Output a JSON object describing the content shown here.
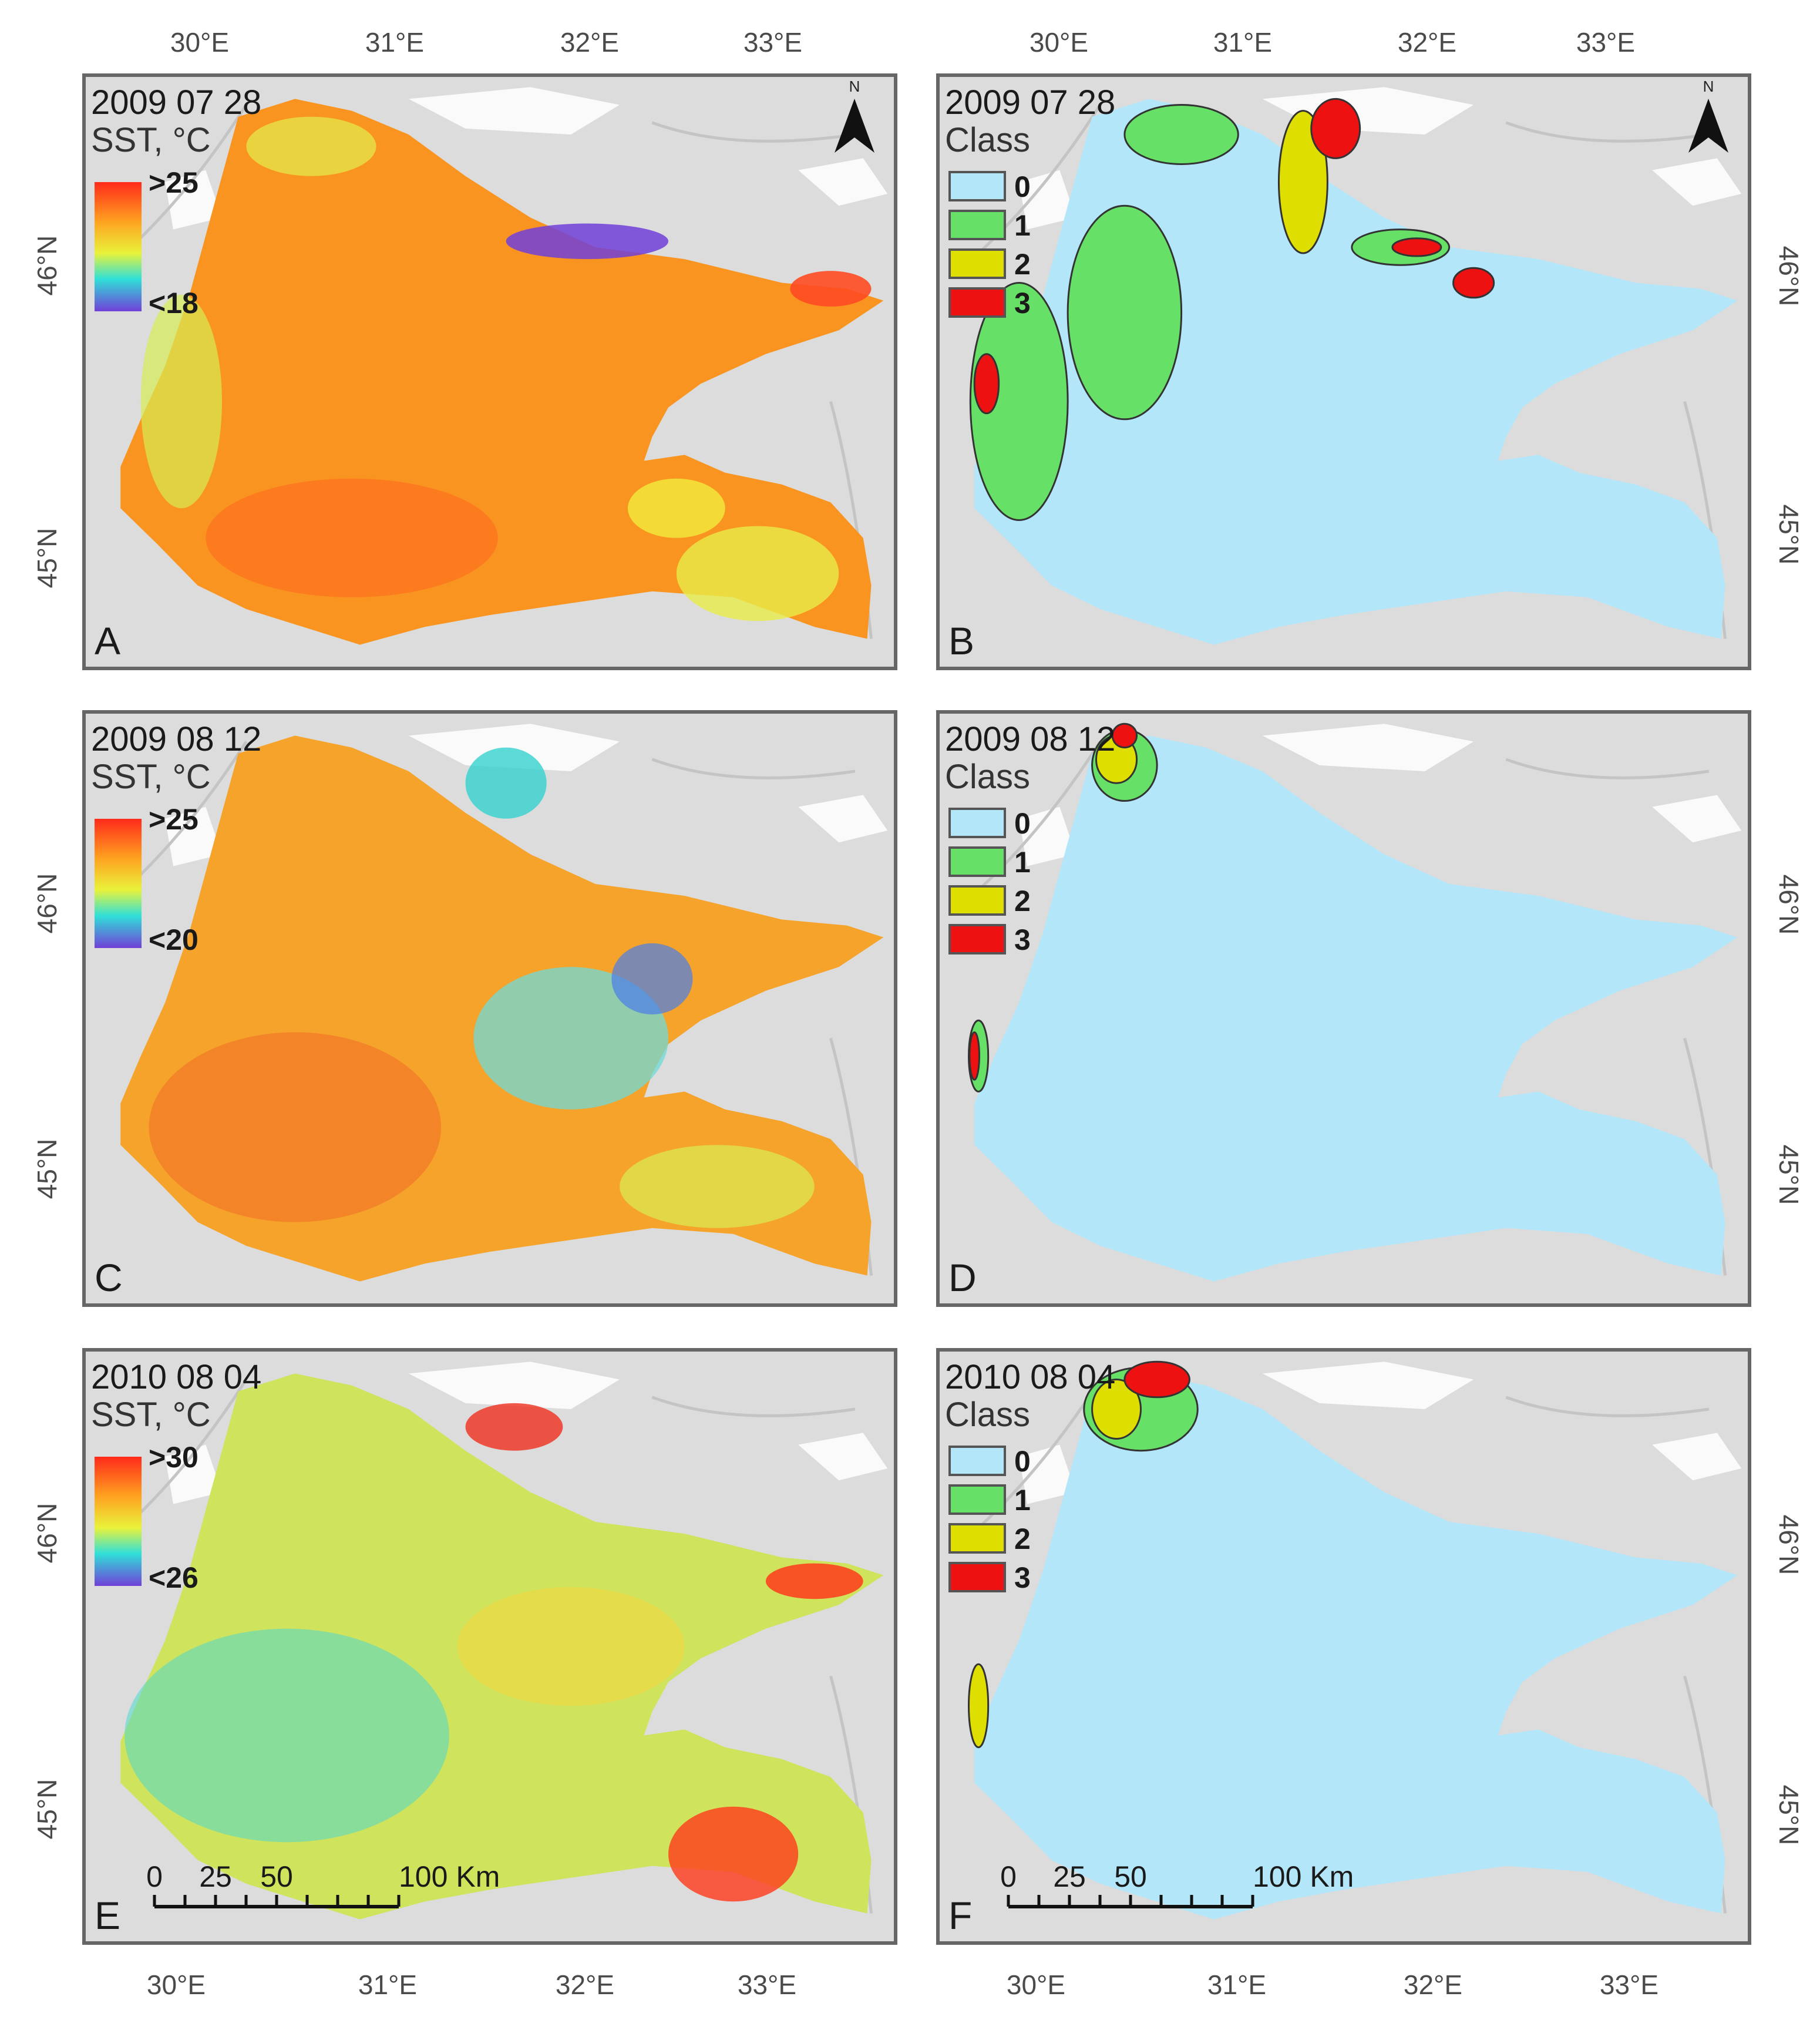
{
  "axes": {
    "lon_labels": [
      "30°E",
      "31°E",
      "32°E",
      "33°E"
    ],
    "lat_labels": [
      "46°N",
      "45°N"
    ]
  },
  "colors": {
    "land": "#dcdcdc",
    "land_outline": "#c4c4c4",
    "frame": "#666666",
    "class_0": "#b3e6f9",
    "class_1": "#66e066",
    "class_2": "#dede00",
    "class_3": "#ee1111",
    "sst_warm": "#ff3b1e",
    "sst_cold": "#7040d8"
  },
  "panels": [
    {
      "id": "A",
      "kind": "sst",
      "date": "2009 07 28",
      "title": "SST, °C",
      "legend": {
        "max_label": ">25",
        "min_label": "<18"
      },
      "dominant_color": "#f99421",
      "has_north_arrow": true,
      "has_scale_bar": false
    },
    {
      "id": "B",
      "kind": "class",
      "date": "2009 07 28",
      "title": "Class",
      "classes": [
        "0",
        "1",
        "2",
        "3"
      ],
      "has_north_arrow": true,
      "has_scale_bar": false
    },
    {
      "id": "C",
      "kind": "sst",
      "date": "2009 08 12",
      "title": "SST, °C",
      "legend": {
        "max_label": ">25",
        "min_label": "<20"
      },
      "dominant_color": "#f5a32a",
      "has_north_arrow": false,
      "has_scale_bar": false
    },
    {
      "id": "D",
      "kind": "class",
      "date": "2009 08 12",
      "title": "Class",
      "classes": [
        "0",
        "1",
        "2",
        "3"
      ],
      "has_north_arrow": false,
      "has_scale_bar": false
    },
    {
      "id": "E",
      "kind": "sst",
      "date": "2010 08 04",
      "title": "SST, °C",
      "legend": {
        "max_label": ">30",
        "min_label": "<26"
      },
      "dominant_color": "#cfe35c",
      "has_north_arrow": false,
      "has_scale_bar": true
    },
    {
      "id": "F",
      "kind": "class",
      "date": "2010 08 04",
      "title": "Class",
      "classes": [
        "0",
        "1",
        "2",
        "3"
      ],
      "has_north_arrow": false,
      "has_scale_bar": true
    }
  ],
  "scale_bar": {
    "labels": [
      "0",
      "25",
      "50",
      "100 Km"
    ],
    "values": [
      0,
      25,
      50,
      100
    ]
  },
  "north_arrow": {
    "label": "N"
  }
}
